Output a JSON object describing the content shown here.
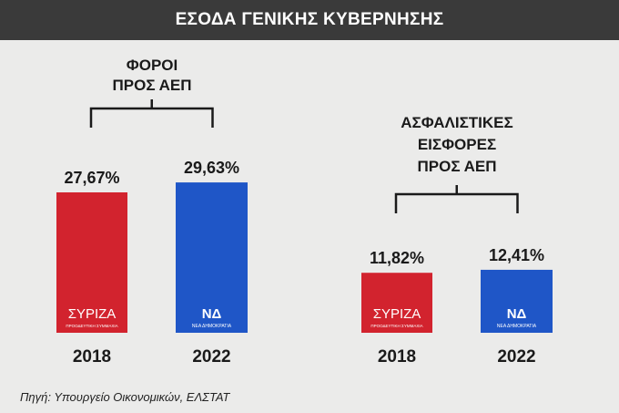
{
  "header": {
    "title": "ΕΣΟΔΑ ΓΕΝΙΚΗΣ ΚΥΒΕΡΝΗΣΗΣ"
  },
  "source": "Πηγή: Υπουργείο Οικονομικών, ΕΛΣΤΑΤ",
  "colors": {
    "syriza": "#d2232e",
    "nd": "#1f56c7",
    "header_bg": "#3a3a3a",
    "background": "#ebebea"
  },
  "logos": {
    "syriza": {
      "name": "ΣΥΡΙΖΑ",
      "tagline": "ΠΡΟΟΔΕΥΤΙΚΗ ΣΥΜΜΑΧΙΑ"
    },
    "nd": {
      "name": "ΝΔ",
      "tagline": "ΝΕΑ ΔΗΜΟΚΡΑΤΙΑ"
    }
  },
  "chart_data": [
    {
      "type": "bar",
      "title": "ΦΟΡΟΙ ΠΡΟΣ ΑΕΠ",
      "title_lines": [
        "ΦΟΡΟΙ",
        "ΠΡΟΣ ΑΕΠ"
      ],
      "categories": [
        "2018",
        "2022"
      ],
      "values": [
        27.67,
        29.63
      ],
      "value_labels": [
        "27,67%",
        "29,63%"
      ],
      "bar_colors": [
        "#d2232e",
        "#1f56c7"
      ],
      "logos": [
        "syriza",
        "nd"
      ]
    },
    {
      "type": "bar",
      "title": "ΑΣΦΑΛΙΣΤΙΚΕΣ ΕΙΣΦΟΡΕΣ ΠΡΟΣ ΑΕΠ",
      "title_lines": [
        "ΑΣΦΑΛΙΣΤΙΚΕΣ",
        "ΕΙΣΦΟΡΕΣ",
        "ΠΡΟΣ ΑΕΠ"
      ],
      "categories": [
        "2018",
        "2022"
      ],
      "values": [
        11.82,
        12.41
      ],
      "value_labels": [
        "11,82%",
        "12,41%"
      ],
      "bar_colors": [
        "#d2232e",
        "#1f56c7"
      ],
      "logos": [
        "syriza",
        "nd"
      ]
    }
  ]
}
